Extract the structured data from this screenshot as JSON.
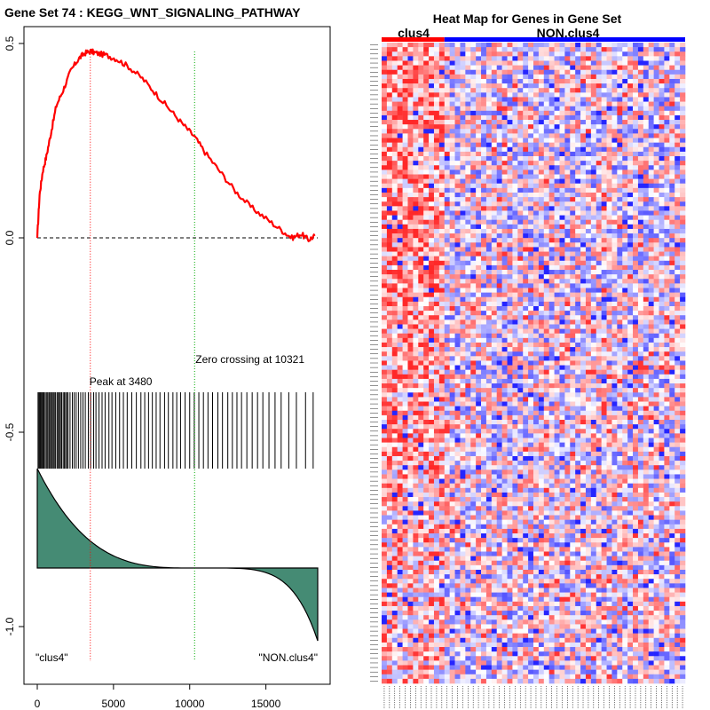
{
  "chart_data": [
    {
      "type": "line",
      "title": "Gene Set  74 : KEGG_WNT_SIGNALING_PATHWAY",
      "xlabel": "",
      "ylabel": "",
      "xlim": [
        0,
        18400
      ],
      "ylim": [
        -1.15,
        0.52
      ],
      "x_ticks": [
        0,
        5000,
        10000,
        15000
      ],
      "x_tick_labels": [
        "0",
        "5000",
        "10000",
        "15000"
      ],
      "y_ticks": [
        0.5,
        0.0,
        -0.5,
        -1.0
      ],
      "y_tick_labels": [
        "0.5",
        "0.0",
        "-0.5",
        "-1.0"
      ],
      "series": [
        {
          "name": "running enrichment score",
          "color": "#ff0000",
          "x": [
            0,
            150,
            350,
            600,
            900,
            1250,
            1700,
            2200,
            2700,
            3100,
            3480,
            3900,
            4500,
            5200,
            6000,
            6900,
            7800,
            8700,
            9600,
            10321,
            11000,
            12000,
            13000,
            14000,
            15000,
            16000,
            16700,
            17300,
            17800,
            18200
          ],
          "y": [
            0.0,
            0.11,
            0.17,
            0.21,
            0.27,
            0.34,
            0.38,
            0.43,
            0.46,
            0.475,
            0.48,
            0.475,
            0.47,
            0.46,
            0.44,
            0.41,
            0.37,
            0.33,
            0.29,
            0.26,
            0.22,
            0.17,
            0.12,
            0.08,
            0.05,
            0.02,
            0.0,
            0.01,
            -0.005,
            0.005
          ]
        }
      ],
      "baseline": 0.0,
      "peak": {
        "x": 3480,
        "label": "Peak at 3480",
        "color": "#ff0000"
      },
      "zero_crossing": {
        "x": 10321,
        "label": "Zero crossing at 10321",
        "color": "#00aa00"
      },
      "hits": [
        50,
        110,
        140,
        200,
        270,
        330,
        390,
        440,
        520,
        600,
        680,
        760,
        820,
        900,
        980,
        1050,
        1120,
        1200,
        1300,
        1380,
        1450,
        1520,
        1600,
        1700,
        1780,
        1860,
        1940,
        2020,
        2150,
        2300,
        2420,
        2550,
        2700,
        2850,
        3000,
        3150,
        3350,
        3500,
        3700,
        3850,
        4050,
        4250,
        4450,
        4700,
        4900,
        5150,
        5400,
        5650,
        5900,
        6200,
        6500,
        6800,
        7050,
        7300,
        7550,
        7800,
        8050,
        8350,
        8600,
        8900,
        9150,
        9400,
        9700,
        10000,
        10300,
        10600,
        10900,
        11200,
        11500,
        11850,
        12150,
        12500,
        12800,
        13100,
        13400,
        13750,
        14100,
        14450,
        14800,
        15200,
        15600,
        16000,
        16500,
        17000,
        17600,
        18100
      ],
      "class_labels": {
        "left": "\"clus4\"",
        "right": "\"NON.clus4\""
      },
      "ranked_metric_color": "#458b74"
    },
    {
      "type": "heatmap",
      "title": "Heat Map for Genes in Gene Set",
      "groups": [
        {
          "name": "clus4",
          "color": "#ff0000",
          "samples": 12
        },
        {
          "name": "NON.clus4",
          "color": "#0000ff",
          "samples": 46
        }
      ],
      "rows": 141,
      "cols": 58,
      "seed": 74
    }
  ]
}
